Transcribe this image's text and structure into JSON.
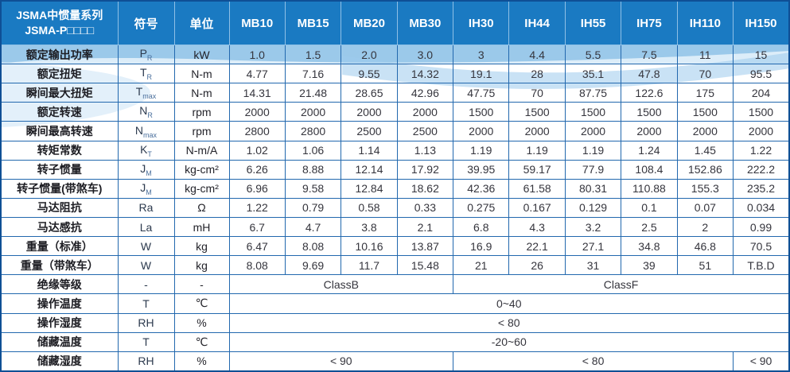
{
  "table": {
    "title_line1": "JSMA中惯量系列",
    "title_line2": "JSMA-P□□□□",
    "col_symbol": "符号",
    "col_unit": "单位",
    "models": [
      "MB10",
      "MB15",
      "MB20",
      "MB30",
      "IH30",
      "IH44",
      "IH55",
      "IH75",
      "IH110",
      "IH150"
    ],
    "rows": [
      {
        "label": "额定输出功率",
        "symbol": "P",
        "sub": "R",
        "unit": "kW",
        "values": [
          "1.0",
          "1.5",
          "2.0",
          "3.0",
          "3",
          "4.4",
          "5.5",
          "7.5",
          "11",
          "15"
        ]
      },
      {
        "label": "额定扭矩",
        "symbol": "T",
        "sub": "R",
        "unit": "N-m",
        "values": [
          "4.77",
          "7.16",
          "9.55",
          "14.32",
          "19.1",
          "28",
          "35.1",
          "47.8",
          "70",
          "95.5"
        ]
      },
      {
        "label": "瞬间最大扭矩",
        "symbol": "T",
        "sub": "max",
        "unit": "N-m",
        "values": [
          "14.31",
          "21.48",
          "28.65",
          "42.96",
          "47.75",
          "70",
          "87.75",
          "122.6",
          "175",
          "204"
        ]
      },
      {
        "label": "额定转速",
        "symbol": "N",
        "sub": "R",
        "unit": "rpm",
        "values": [
          "2000",
          "2000",
          "2000",
          "2000",
          "1500",
          "1500",
          "1500",
          "1500",
          "1500",
          "1500"
        ]
      },
      {
        "label": "瞬间最高转速",
        "symbol": "N",
        "sub": "max",
        "unit": "rpm",
        "values": [
          "2800",
          "2800",
          "2500",
          "2500",
          "2000",
          "2000",
          "2000",
          "2000",
          "2000",
          "2000"
        ]
      },
      {
        "label": "转矩常数",
        "symbol": "K",
        "sub": "T",
        "unit": "N-m/A",
        "values": [
          "1.02",
          "1.06",
          "1.14",
          "1.13",
          "1.19",
          "1.19",
          "1.19",
          "1.24",
          "1.45",
          "1.22"
        ]
      },
      {
        "label": "转子惯量",
        "symbol": "J",
        "sub": "M",
        "unit": "kg-cm²",
        "values": [
          "6.26",
          "8.88",
          "12.14",
          "17.92",
          "39.95",
          "59.17",
          "77.9",
          "108.4",
          "152.86",
          "222.2"
        ]
      },
      {
        "label": "转子惯量(带煞车)",
        "symbol": "J",
        "sub": "M",
        "unit": "kg-cm²",
        "values": [
          "6.96",
          "9.58",
          "12.84",
          "18.62",
          "42.36",
          "61.58",
          "80.31",
          "110.88",
          "155.3",
          "235.2"
        ]
      },
      {
        "label": "马达阻抗",
        "symbol": "Ra",
        "sub": "",
        "unit": "Ω",
        "values": [
          "1.22",
          "0.79",
          "0.58",
          "0.33",
          "0.275",
          "0.167",
          "0.129",
          "0.1",
          "0.07",
          "0.034"
        ]
      },
      {
        "label": "马达感抗",
        "symbol": "La",
        "sub": "",
        "unit": "mH",
        "values": [
          "6.7",
          "4.7",
          "3.8",
          "2.1",
          "6.8",
          "4.3",
          "3.2",
          "2.5",
          "2",
          "0.99"
        ]
      },
      {
        "label": "重量（标准）",
        "symbol": "W",
        "sub": "",
        "unit": "kg",
        "values": [
          "6.47",
          "8.08",
          "10.16",
          "13.87",
          "16.9",
          "22.1",
          "27.1",
          "34.8",
          "46.8",
          "70.5"
        ]
      },
      {
        "label": "重量（带煞车）",
        "symbol": "W",
        "sub": "",
        "unit": "kg",
        "values": [
          "8.08",
          "9.69",
          "11.7",
          "15.48",
          "21",
          "26",
          "31",
          "39",
          "51",
          "T.B.D"
        ]
      },
      {
        "label": "绝缘等级",
        "symbol": "-",
        "sub": "",
        "unit": "-",
        "spans": [
          {
            "text": "ClassB",
            "cols": 4
          },
          {
            "text": "ClassF",
            "cols": 6
          }
        ]
      },
      {
        "label": "操作温度",
        "symbol": "T",
        "sub": "",
        "unit": "℃",
        "spans": [
          {
            "text": "0~40",
            "cols": 10
          }
        ]
      },
      {
        "label": "操作湿度",
        "symbol": "RH",
        "sub": "",
        "unit": "%",
        "spans": [
          {
            "text": "< 80",
            "cols": 10
          }
        ]
      },
      {
        "label": "储藏温度",
        "symbol": "T",
        "sub": "",
        "unit": "℃",
        "spans": [
          {
            "text": "-20~60",
            "cols": 10
          }
        ]
      },
      {
        "label": "储藏湿度",
        "symbol": "RH",
        "sub": "",
        "unit": "%",
        "spans": [
          {
            "text": "< 90",
            "cols": 4
          },
          {
            "text": "< 80",
            "cols": 5
          },
          {
            "text": "< 90",
            "cols": 1
          }
        ]
      }
    ]
  },
  "colors": {
    "header_bg": "#1a7ac2",
    "grid_line": "#2268ae",
    "outer_border": "#0f4f95",
    "wave_light_blue": "#9ccbec",
    "value_text": "#35353d"
  }
}
